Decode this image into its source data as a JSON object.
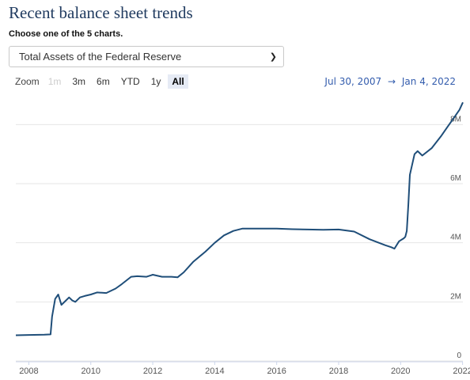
{
  "header": {
    "title": "Recent balance sheet trends",
    "subtitle": "Choose one of the 5 charts."
  },
  "selector": {
    "selected": "Total Assets of the Federal Reserve"
  },
  "range": {
    "zoom_label": "Zoom",
    "buttons": [
      {
        "label": "1m",
        "state": "disabled"
      },
      {
        "label": "3m",
        "state": "normal"
      },
      {
        "label": "6m",
        "state": "normal"
      },
      {
        "label": "YTD",
        "state": "normal"
      },
      {
        "label": "1y",
        "state": "normal"
      },
      {
        "label": "All",
        "state": "active"
      }
    ],
    "from": "Jul 30, 2007",
    "separator": "→",
    "to": "Jan 4, 2022"
  },
  "colors": {
    "line": "#1f4e79",
    "title": "#1f3a5f",
    "date_range": "#335cad"
  },
  "chart_data": {
    "type": "line",
    "title": "",
    "xlabel": "",
    "ylabel": "",
    "x_ticks": [
      "2008",
      "2010",
      "2012",
      "2014",
      "2016",
      "2018",
      "2020",
      "2022"
    ],
    "y_ticks": [
      "0",
      "2M",
      "4M",
      "6M",
      "8M"
    ],
    "ylim": [
      0,
      9000000
    ],
    "xlim": [
      2007.58,
      2022.01
    ],
    "grid": true,
    "legend": "none",
    "series": [
      {
        "x": [
          2007.58,
          2008.0,
          2008.5,
          2008.7,
          2008.75,
          2008.85,
          2008.95,
          2009.05,
          2009.2,
          2009.3,
          2009.4,
          2009.5,
          2009.65,
          2009.8,
          2010.0,
          2010.2,
          2010.5,
          2010.8,
          2011.0,
          2011.3,
          2011.5,
          2011.8,
          2011.95,
          2012.0,
          2012.3,
          2012.6,
          2012.8,
          2013.0,
          2013.3,
          2013.7,
          2014.0,
          2014.3,
          2014.6,
          2014.9,
          2015.2,
          2015.5,
          2016.0,
          2016.5,
          2017.0,
          2017.5,
          2018.0,
          2018.5,
          2019.0,
          2019.5,
          2019.7,
          2019.8,
          2019.95,
          2020.1,
          2020.15,
          2020.2,
          2020.25,
          2020.3,
          2020.45,
          2020.55,
          2020.7,
          2021.0,
          2021.3,
          2021.5,
          2021.7,
          2021.9,
          2022.01
        ],
        "y": [
          870000,
          880000,
          890000,
          900000,
          1500000,
          2100000,
          2250000,
          1900000,
          2050000,
          2150000,
          2050000,
          2000000,
          2150000,
          2200000,
          2250000,
          2320000,
          2300000,
          2450000,
          2600000,
          2850000,
          2870000,
          2850000,
          2900000,
          2920000,
          2850000,
          2850000,
          2830000,
          3000000,
          3350000,
          3700000,
          4000000,
          4250000,
          4400000,
          4480000,
          4480000,
          4480000,
          4480000,
          4460000,
          4450000,
          4440000,
          4450000,
          4380000,
          4120000,
          3920000,
          3850000,
          3800000,
          4050000,
          4150000,
          4200000,
          4400000,
          5300000,
          6300000,
          7000000,
          7100000,
          6950000,
          7200000,
          7600000,
          7900000,
          8200000,
          8500000,
          8750000
        ]
      }
    ]
  }
}
